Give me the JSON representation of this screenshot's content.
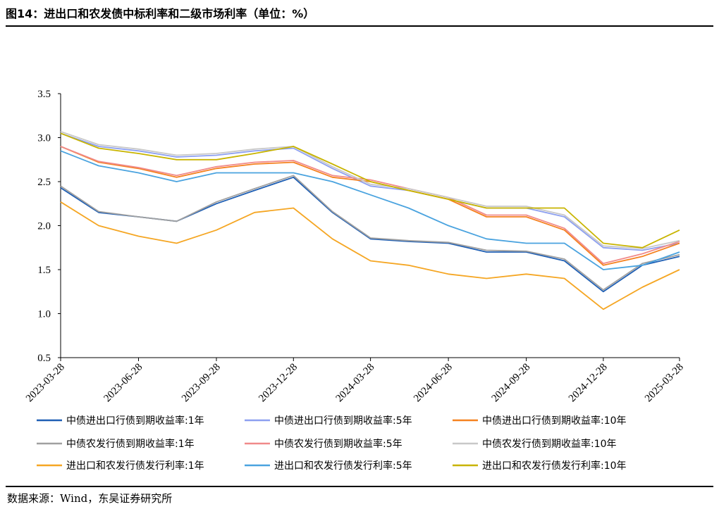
{
  "header": {
    "title": "图14：进出口和农发债中标利率和二级市场利率（单位：%）"
  },
  "footer": {
    "source": "数据来源：Wind，东吴证券研究所"
  },
  "chart_data": {
    "type": "line",
    "title": "",
    "xlabel": "",
    "ylabel": "",
    "ylim": [
      0.5,
      3.5
    ],
    "yticks": [
      "0.5",
      "1.0",
      "1.5",
      "2.0",
      "2.5",
      "3.0",
      "3.5"
    ],
    "xticks": [
      "2023-03-28",
      "2023-06-28",
      "2023-09-28",
      "2023-12-28",
      "2024-03-28",
      "2024-06-28",
      "2024-09-28",
      "2024-12-28",
      "2025-03-28"
    ],
    "grid": false,
    "legend_position": "bottom",
    "x": [
      "2023-03-28",
      "2023-05-12",
      "2023-06-28",
      "2023-08-12",
      "2023-09-28",
      "2023-11-12",
      "2023-12-28",
      "2024-02-12",
      "2024-03-28",
      "2024-05-12",
      "2024-06-28",
      "2024-08-12",
      "2024-09-28",
      "2024-11-12",
      "2024-12-28",
      "2025-02-12",
      "2025-03-28"
    ],
    "series": [
      {
        "name": "中债进出口行债到期收益率:1年",
        "color": "#1f5fb4",
        "values": [
          2.43,
          2.15,
          2.1,
          2.05,
          2.25,
          2.4,
          2.55,
          2.15,
          1.85,
          1.82,
          1.8,
          1.7,
          1.7,
          1.6,
          1.25,
          1.55,
          1.65
        ]
      },
      {
        "name": "中债进出口行债到期收益率:5年",
        "color": "#8da0f0",
        "values": [
          3.05,
          2.9,
          2.85,
          2.78,
          2.8,
          2.85,
          2.88,
          2.65,
          2.45,
          2.4,
          2.3,
          2.2,
          2.2,
          2.1,
          1.75,
          1.72,
          1.8
        ]
      },
      {
        "name": "中债进出口行债到期收益率:10年",
        "color": "#f58220",
        "values": [
          2.9,
          2.72,
          2.65,
          2.55,
          2.65,
          2.7,
          2.72,
          2.55,
          2.5,
          2.4,
          2.3,
          2.1,
          2.1,
          1.95,
          1.55,
          1.65,
          1.8
        ]
      },
      {
        "name": "中债农发行债到期收益率:1年",
        "color": "#a0a0a0",
        "values": [
          2.45,
          2.16,
          2.1,
          2.05,
          2.27,
          2.42,
          2.57,
          2.16,
          1.86,
          1.83,
          1.81,
          1.72,
          1.71,
          1.62,
          1.27,
          1.57,
          1.67
        ]
      },
      {
        "name": "中债农发行债到期收益率:5年",
        "color": "#f08a8a",
        "values": [
          2.9,
          2.73,
          2.66,
          2.57,
          2.67,
          2.72,
          2.74,
          2.57,
          2.52,
          2.42,
          2.32,
          2.12,
          2.12,
          1.97,
          1.57,
          1.68,
          1.82
        ]
      },
      {
        "name": "中债农发行债到期收益率:10年",
        "color": "#c8c8c8",
        "values": [
          3.07,
          2.92,
          2.87,
          2.8,
          2.82,
          2.87,
          2.9,
          2.67,
          2.47,
          2.42,
          2.32,
          2.22,
          2.22,
          2.12,
          1.77,
          1.74,
          1.83
        ]
      },
      {
        "name": "进出口和农发行债发行利率:1年",
        "color": "#f5a623",
        "values": [
          2.27,
          2.0,
          1.88,
          1.8,
          1.95,
          2.15,
          2.2,
          1.85,
          1.6,
          1.55,
          1.45,
          1.4,
          1.45,
          1.4,
          1.05,
          1.3,
          1.5
        ]
      },
      {
        "name": "进出口和农发行债发行利率:5年",
        "color": "#4aa3df",
        "values": [
          2.85,
          2.68,
          2.6,
          2.5,
          2.6,
          2.6,
          2.6,
          2.5,
          2.35,
          2.2,
          2.0,
          1.85,
          1.8,
          1.8,
          1.5,
          1.55,
          1.7
        ]
      },
      {
        "name": "进出口和农发行债发行利率:10年",
        "color": "#c8b400",
        "values": [
          3.05,
          2.88,
          2.82,
          2.75,
          2.75,
          2.82,
          2.9,
          2.7,
          2.5,
          2.4,
          2.3,
          2.2,
          2.2,
          2.2,
          1.8,
          1.75,
          1.95
        ]
      }
    ]
  }
}
